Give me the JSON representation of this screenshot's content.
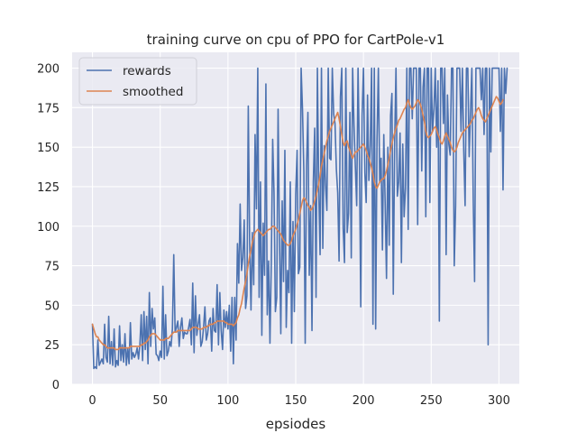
{
  "chart_data": {
    "type": "line",
    "title": "training curve on cpu of PPO for CartPole-v1",
    "xlabel": "epsiodes",
    "ylabel": "",
    "xlim": [
      -15,
      315
    ],
    "ylim": [
      0,
      210
    ],
    "xticks": [
      0,
      50,
      100,
      150,
      200,
      250,
      300
    ],
    "yticks": [
      0,
      25,
      50,
      75,
      100,
      125,
      150,
      175,
      200
    ],
    "grid": true,
    "legend": "top-left",
    "series": [
      {
        "name": "rewards",
        "color": "#4c72b0",
        "values": [
          38,
          10,
          11,
          10,
          28,
          12,
          14,
          16,
          13,
          38,
          17,
          14,
          43,
          13,
          27,
          12,
          35,
          11,
          15,
          12,
          37,
          15,
          25,
          14,
          32,
          12,
          23,
          13,
          39,
          16,
          20,
          17,
          19,
          23,
          16,
          25,
          44,
          15,
          46,
          22,
          43,
          13,
          58,
          24,
          48,
          35,
          42,
          19,
          18,
          15,
          21,
          17,
          62,
          16,
          44,
          18,
          21,
          27,
          24,
          35,
          82,
          33,
          36,
          40,
          24,
          36,
          42,
          29,
          33,
          32,
          32,
          36,
          41,
          25,
          64,
          20,
          56,
          31,
          38,
          44,
          24,
          27,
          36,
          49,
          28,
          32,
          40,
          42,
          21,
          48,
          34,
          33,
          63,
          25,
          58,
          34,
          22,
          47,
          36,
          46,
          35,
          50,
          21,
          55,
          13,
          55,
          28,
          89,
          64,
          114,
          72,
          80,
          104,
          48,
          56,
          176,
          89,
          47,
          96,
          63,
          158,
          111,
          200,
          55,
          128,
          31,
          102,
          69,
          190,
          44,
          78,
          26,
          78,
          155,
          121,
          46,
          55,
          174,
          94,
          32,
          116,
          65,
          148,
          36,
          72,
          58,
          128,
          26,
          103,
          46,
          120,
          148,
          70,
          74,
          200,
          174,
          135,
          26,
          138,
          172,
          69,
          113,
          34,
          128,
          162,
          55,
          200,
          122,
          82,
          200,
          86,
          151,
          126,
          110,
          200,
          143,
          142,
          200,
          171,
          165,
          136,
          121,
          78,
          182,
          200,
          99,
          77,
          200,
          96,
          108,
          172,
          80,
          200,
          164,
          138,
          113,
          200,
          144,
          49,
          170,
          200,
          134,
          115,
          183,
          129,
          151,
          200,
          38,
          200,
          35,
          155,
          200,
          128,
          143,
          85,
          158,
          115,
          67,
          150,
          88,
          170,
          184,
          57,
          152,
          200,
          119,
          128,
          159,
          77,
          152,
          106,
          124,
          200,
          98,
          200,
          200,
          168,
          200,
          200,
          200,
          101,
          200,
          200,
          135,
          188,
          200,
          106,
          200,
          200,
          115,
          200,
          160,
          174,
          200,
          150,
          192,
          40,
          200,
          200,
          165,
          200,
          82,
          183,
          152,
          145,
          200,
          200,
          75,
          113,
          200,
          200,
          200,
          160,
          200,
          148,
          113,
          200,
          200,
          144,
          172,
          200,
          117,
          65,
          200,
          200,
          200,
          200,
          180,
          200,
          158,
          200,
          200,
          25,
          200,
          147,
          200,
          200,
          200,
          200,
          200,
          200,
          160,
          200,
          123,
          200,
          184,
          200
        ],
        "values_note": "ignore"
      },
      {
        "name": "smoothed",
        "color": "#dd8452",
        "values": [
          38,
          35,
          32,
          30,
          30,
          28,
          27,
          26,
          25,
          25,
          24,
          23,
          23,
          23,
          23,
          23,
          23,
          22,
          22,
          22,
          23,
          23,
          23,
          23,
          23,
          23,
          23,
          23,
          24,
          24,
          24,
          24,
          24,
          24,
          24,
          24,
          25,
          25,
          26,
          26,
          27,
          28,
          30,
          31,
          32,
          32,
          32,
          31,
          30,
          29,
          28,
          28,
          28,
          28,
          29,
          29,
          29,
          30,
          31,
          32,
          33,
          33,
          33,
          34,
          34,
          34,
          34,
          34,
          34,
          34,
          34,
          34,
          34,
          35,
          36,
          36,
          36,
          36,
          35,
          35,
          35,
          35,
          36,
          36,
          36,
          37,
          37,
          38,
          38,
          38,
          39,
          39,
          40,
          40,
          40,
          40,
          40,
          40,
          39,
          39,
          38,
          38,
          38,
          38,
          37,
          38,
          39,
          42,
          44,
          48,
          51,
          56,
          61,
          65,
          70,
          76,
          81,
          85,
          90,
          93,
          96,
          97,
          98,
          97,
          96,
          95,
          94,
          95,
          96,
          97,
          98,
          98,
          99,
          100,
          100,
          99,
          98,
          97,
          96,
          95,
          93,
          91,
          90,
          89,
          88,
          88,
          89,
          91,
          94,
          96,
          98,
          101,
          104,
          108,
          112,
          116,
          118,
          117,
          115,
          113,
          112,
          110,
          111,
          113,
          116,
          119,
          123,
          127,
          132,
          138,
          142,
          146,
          150,
          154,
          157,
          160,
          162,
          164,
          166,
          168,
          170,
          172,
          168,
          163,
          158,
          153,
          151,
          153,
          154,
          150,
          148,
          145,
          143,
          145,
          147,
          147,
          148,
          149,
          150,
          151,
          152,
          150,
          148,
          145,
          143,
          140,
          137,
          133,
          128,
          125,
          124,
          126,
          128,
          129,
          130,
          130,
          132,
          135,
          139,
          143,
          148,
          152,
          156,
          159,
          162,
          164,
          167,
          168,
          170,
          172,
          174,
          175,
          178,
          180,
          177,
          175,
          174,
          175,
          176,
          178,
          180,
          179,
          177,
          174,
          170,
          166,
          160,
          157,
          156,
          157,
          158,
          160,
          162,
          163,
          161,
          158,
          156,
          153,
          152,
          154,
          157,
          159,
          157,
          155,
          153,
          150,
          148,
          147,
          148,
          150,
          153,
          155,
          157,
          159,
          160,
          161,
          162,
          163,
          164,
          165,
          167,
          168,
          170,
          172,
          174,
          175,
          173,
          170,
          168,
          167,
          166,
          168,
          170,
          172,
          174,
          176,
          178,
          180,
          182,
          181,
          179,
          177,
          178,
          180
        ]
      }
    ]
  }
}
